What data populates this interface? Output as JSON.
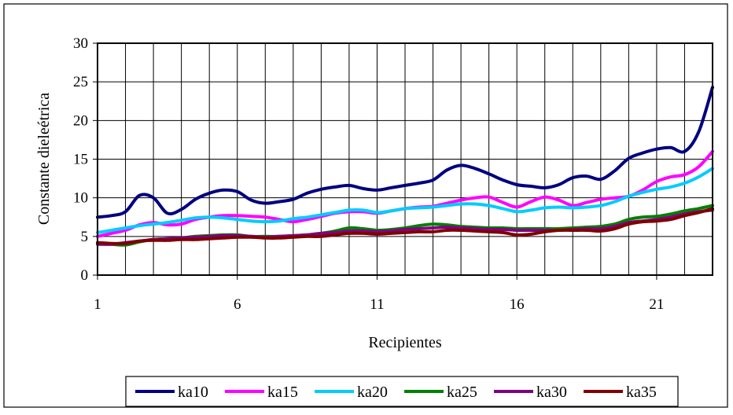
{
  "chart_data": {
    "type": "line",
    "title": "",
    "xlabel": "Recipientes",
    "ylabel": "Constante dieleétrica",
    "xlim": [
      1,
      23
    ],
    "ylim": [
      0,
      30
    ],
    "x_ticks": [
      1,
      6,
      11,
      16,
      21
    ],
    "y_ticks": [
      0,
      5,
      10,
      15,
      20,
      25,
      30
    ],
    "grid": true,
    "legend_position": "bottom",
    "x": [
      1,
      1.5,
      2,
      2.5,
      3,
      3.5,
      4,
      4.5,
      5,
      5.5,
      6,
      6.5,
      7,
      7.5,
      8,
      8.5,
      9,
      9.5,
      10,
      10.5,
      11,
      11.5,
      12,
      12.5,
      13,
      13.5,
      14,
      14.5,
      15,
      15.5,
      16,
      16.5,
      17,
      17.5,
      18,
      18.5,
      19,
      19.5,
      20,
      20.5,
      21,
      21.5,
      22,
      22.5,
      23
    ],
    "series": [
      {
        "name": "ka10",
        "color": "#000080",
        "values": [
          7.5,
          7.7,
          8.2,
          10.3,
          10.0,
          8.0,
          8.5,
          9.8,
          10.6,
          11.0,
          10.8,
          9.7,
          9.3,
          9.5,
          9.8,
          10.6,
          11.1,
          11.4,
          11.6,
          11.2,
          11.0,
          11.3,
          11.6,
          11.9,
          12.3,
          13.6,
          14.2,
          13.8,
          13.1,
          12.3,
          11.7,
          11.5,
          11.3,
          11.7,
          12.6,
          12.8,
          12.4,
          13.5,
          15.1,
          15.8,
          16.3,
          16.5,
          16.0,
          18.5,
          24.3
        ]
      },
      {
        "name": "ka15",
        "color": "#FF00FF",
        "values": [
          5.0,
          5.4,
          5.8,
          6.5,
          6.8,
          6.5,
          6.6,
          7.2,
          7.5,
          7.7,
          7.7,
          7.6,
          7.5,
          7.2,
          6.9,
          7.2,
          7.6,
          8.0,
          8.2,
          8.2,
          8.0,
          8.3,
          8.6,
          8.8,
          8.9,
          9.3,
          9.7,
          10.0,
          10.1,
          9.4,
          8.8,
          9.5,
          10.1,
          9.7,
          9.0,
          9.4,
          9.8,
          10.0,
          10.2,
          11.0,
          12.1,
          12.7,
          13.0,
          14.0,
          16.0
        ]
      },
      {
        "name": "ka20",
        "color": "#00CCFF",
        "values": [
          5.5,
          5.8,
          6.1,
          6.4,
          6.6,
          6.8,
          7.1,
          7.4,
          7.5,
          7.4,
          7.2,
          7.0,
          6.9,
          7.0,
          7.3,
          7.5,
          7.8,
          8.1,
          8.4,
          8.4,
          8.1,
          8.3,
          8.6,
          8.7,
          8.8,
          9.0,
          9.2,
          9.2,
          9.0,
          8.6,
          8.2,
          8.4,
          8.7,
          8.8,
          8.7,
          8.8,
          9.0,
          9.5,
          10.2,
          10.7,
          11.1,
          11.4,
          11.9,
          12.7,
          13.8
        ]
      },
      {
        "name": "ka25",
        "color": "#008000",
        "values": [
          4.2,
          4.0,
          3.9,
          4.3,
          4.6,
          4.7,
          4.8,
          5.0,
          5.1,
          5.2,
          5.2,
          5.0,
          5.0,
          5.0,
          5.1,
          5.2,
          5.4,
          5.7,
          6.1,
          6.0,
          5.8,
          5.9,
          6.1,
          6.4,
          6.6,
          6.5,
          6.3,
          6.2,
          6.1,
          6.1,
          6.0,
          6.0,
          6.0,
          6.0,
          6.1,
          6.2,
          6.3,
          6.6,
          7.2,
          7.5,
          7.6,
          7.9,
          8.3,
          8.6,
          9.0
        ]
      },
      {
        "name": "ka30",
        "color": "#800080",
        "values": [
          4.0,
          4.0,
          4.2,
          4.4,
          4.6,
          4.7,
          4.8,
          4.9,
          5.0,
          5.1,
          5.1,
          5.0,
          4.9,
          5.0,
          5.1,
          5.2,
          5.4,
          5.5,
          5.7,
          5.7,
          5.6,
          5.7,
          5.9,
          6.0,
          6.1,
          6.2,
          6.1,
          6.0,
          5.9,
          5.9,
          5.8,
          5.8,
          5.8,
          5.8,
          5.9,
          6.0,
          6.0,
          6.3,
          6.8,
          7.0,
          7.2,
          7.5,
          7.9,
          8.2,
          8.4
        ]
      },
      {
        "name": "ka35",
        "color": "#800000",
        "values": [
          4.2,
          4.1,
          4.1,
          4.4,
          4.5,
          4.5,
          4.6,
          4.6,
          4.7,
          4.8,
          4.9,
          4.9,
          4.8,
          4.8,
          4.9,
          5.0,
          5.0,
          5.2,
          5.4,
          5.4,
          5.3,
          5.4,
          5.5,
          5.6,
          5.6,
          5.8,
          5.8,
          5.7,
          5.6,
          5.5,
          5.2,
          5.3,
          5.6,
          5.8,
          5.8,
          5.8,
          5.7,
          6.0,
          6.6,
          6.9,
          7.0,
          7.2,
          7.7,
          8.1,
          8.6
        ]
      }
    ]
  }
}
